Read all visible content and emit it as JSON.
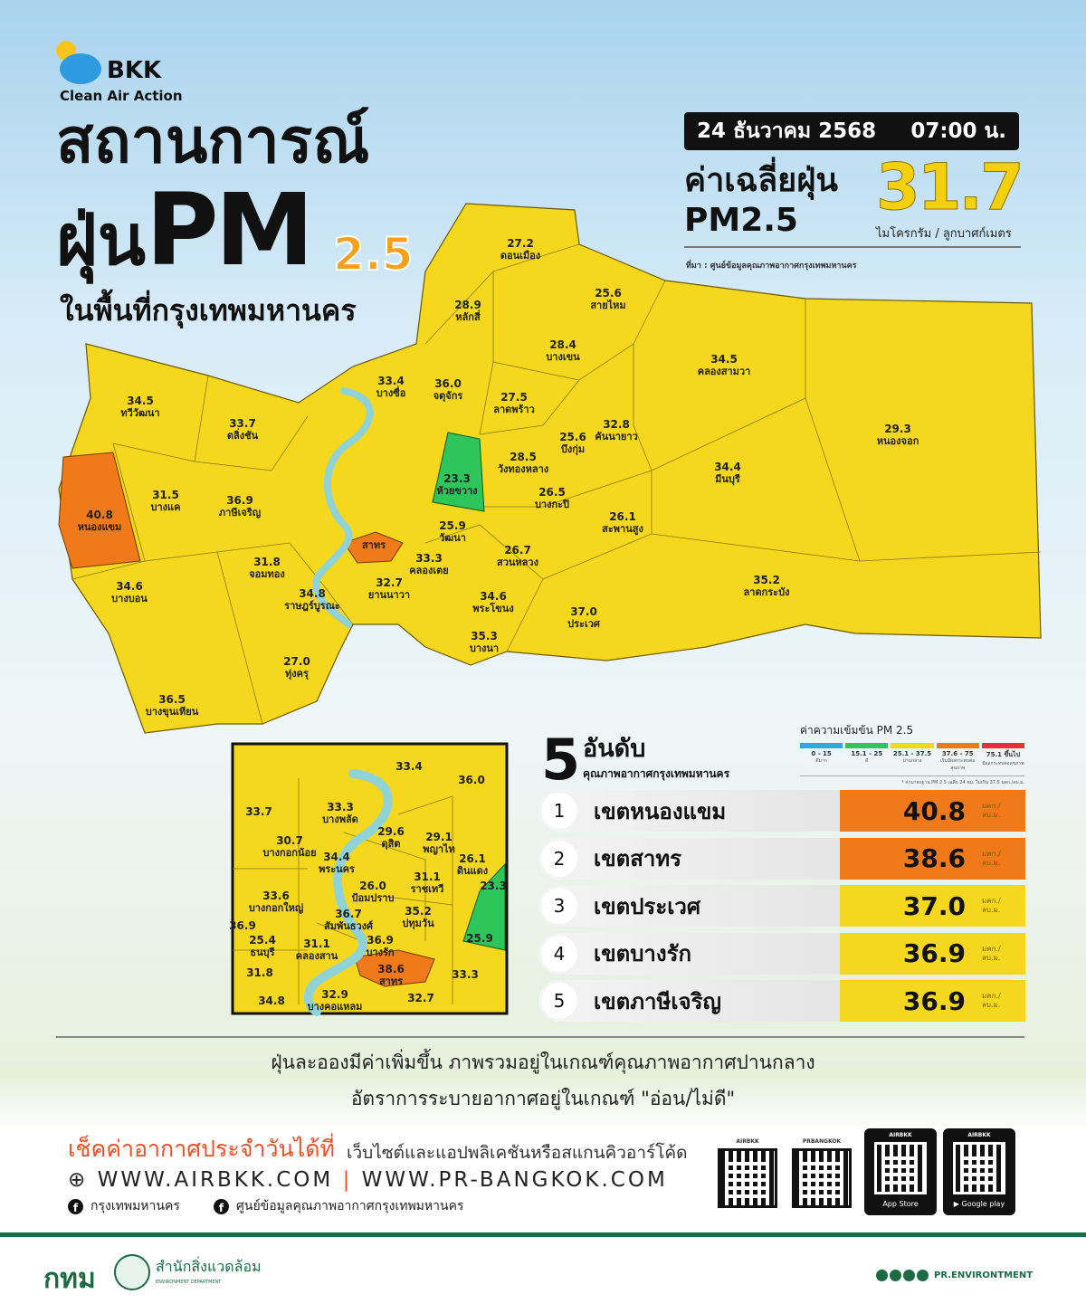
{
  "brand": {
    "logo": "BKK",
    "tagline": "Clean Air Action"
  },
  "title": {
    "line1": "สถานการณ์",
    "line2_prefix": "ฝุ่น",
    "line2_pm": "PM",
    "line2_sub": "2.5",
    "line3": "ในพื้นที่กรุงเทพมหานคร"
  },
  "report": {
    "date": "24 ธันวาคม 2568",
    "time": "07:00 น.",
    "avg_label_1": "ค่าเฉลี่ยฝุ่น",
    "avg_label_2": "PM2.5",
    "avg_value": "31.7",
    "avg_unit": "ไมโครกรัม / ลูกบาศก์เมตร",
    "source": "ที่มา : ศูนย์ข้อมูลคุณภาพอากาศกรุงเทพมหานคร"
  },
  "colors": {
    "good": "#2ea8e0",
    "fair": "#2ec55a",
    "moderate": "#f5d81e",
    "unhealthy_sensitive": "#f07a1a",
    "unhealthy": "#e83030",
    "river": "#8fd3d8"
  },
  "districts": [
    {
      "name": "ดอนเมือง",
      "value": "27.2",
      "level": "moderate"
    },
    {
      "name": "หลักสี่",
      "value": "28.9",
      "level": "moderate"
    },
    {
      "name": "สายไหม",
      "value": "25.6",
      "level": "moderate"
    },
    {
      "name": "บางเขน",
      "value": "28.4",
      "level": "moderate"
    },
    {
      "name": "คลองสามวา",
      "value": "34.5",
      "level": "moderate"
    },
    {
      "name": "หนองจอก",
      "value": "29.3",
      "level": "moderate"
    },
    {
      "name": "บางซื่อ",
      "value": "33.4",
      "level": "moderate"
    },
    {
      "name": "จตุจักร",
      "value": "36.0",
      "level": "moderate"
    },
    {
      "name": "ลาดพร้าว",
      "value": "27.5",
      "level": "moderate"
    },
    {
      "name": "บึงกุ่ม",
      "value": "25.6",
      "level": "moderate"
    },
    {
      "name": "คันนายาว",
      "value": "32.8",
      "level": "moderate"
    },
    {
      "name": "มีนบุรี",
      "value": "34.4",
      "level": "moderate"
    },
    {
      "name": "ทวีวัฒนา",
      "value": "34.5",
      "level": "moderate"
    },
    {
      "name": "ตลิ่งชัน",
      "value": "33.7",
      "level": "moderate"
    },
    {
      "name": "บางแค",
      "value": "31.5",
      "level": "moderate"
    },
    {
      "name": "หนองแขม",
      "value": "40.8",
      "level": "unhealthy_sensitive"
    },
    {
      "name": "ภาษีเจริญ",
      "value": "36.9",
      "level": "moderate"
    },
    {
      "name": "ห้วยขวาง",
      "value": "23.3",
      "level": "fair"
    },
    {
      "name": "วังทองหลาง",
      "value": "28.5",
      "level": "moderate"
    },
    {
      "name": "บางกะปิ",
      "value": "26.5",
      "level": "moderate"
    },
    {
      "name": "สะพานสูง",
      "value": "26.1",
      "level": "moderate"
    },
    {
      "name": "ลาดกระบัง",
      "value": "35.2",
      "level": "moderate"
    },
    {
      "name": "วัฒนา",
      "value": "25.9",
      "level": "moderate"
    },
    {
      "name": "สวนหลวง",
      "value": "26.7",
      "level": "moderate"
    },
    {
      "name": "คลองเตย",
      "value": "33.3",
      "level": "moderate"
    },
    {
      "name": "สาทร",
      "value": "",
      "level": "unhealthy_sensitive"
    },
    {
      "name": "จอมทอง",
      "value": "31.8",
      "level": "moderate"
    },
    {
      "name": "บางบอน",
      "value": "34.6",
      "level": "moderate"
    },
    {
      "name": "ราษฎร์บูรณะ",
      "value": "34.8",
      "level": "moderate"
    },
    {
      "name": "ยานนาวา",
      "value": "32.7",
      "level": "moderate"
    },
    {
      "name": "พระโขนง",
      "value": "34.6",
      "level": "moderate"
    },
    {
      "name": "บางนา",
      "value": "35.3",
      "level": "moderate"
    },
    {
      "name": "ประเวศ",
      "value": "37.0",
      "level": "moderate"
    },
    {
      "name": "ทุ่งครุ",
      "value": "27.0",
      "level": "moderate"
    },
    {
      "name": "บางขุนเทียน",
      "value": "36.5",
      "level": "moderate"
    }
  ],
  "inset_districts": [
    {
      "name": "",
      "value": "33.4"
    },
    {
      "name": "",
      "value": "36.0"
    },
    {
      "name": "บางพลัด",
      "value": "33.3"
    },
    {
      "name": "",
      "value": "33.7"
    },
    {
      "name": "บางกอกน้อย",
      "value": "30.7"
    },
    {
      "name": "ดุสิต",
      "value": "29.6"
    },
    {
      "name": "พญาไท",
      "value": "29.1"
    },
    {
      "name": "ดินแดง",
      "value": "26.1"
    },
    {
      "name": "",
      "value": "23.3"
    },
    {
      "name": "พระนคร",
      "value": "34.4"
    },
    {
      "name": "ป้อมปราบ",
      "value": "26.0"
    },
    {
      "name": "ราชเทวี",
      "value": "31.1"
    },
    {
      "name": "บางกอกใหญ่",
      "value": "33.6"
    },
    {
      "name": "สัมพันธวงศ์",
      "value": "36.7"
    },
    {
      "name": "ปทุมวัน",
      "value": "35.2"
    },
    {
      "name": "",
      "value": "36.9"
    },
    {
      "name": "ธนบุรี",
      "value": "25.4"
    },
    {
      "name": "คลองสาน",
      "value": "31.1"
    },
    {
      "name": "บางรัก",
      "value": "36.9"
    },
    {
      "name": "",
      "value": "25.9"
    },
    {
      "name": "สาทร",
      "value": "38.6"
    },
    {
      "name": "",
      "value": "31.8"
    },
    {
      "name": "บางคอแหลม",
      "value": "32.9"
    },
    {
      "name": "",
      "value": "34.8"
    },
    {
      "name": "",
      "value": "32.7"
    },
    {
      "name": "",
      "value": "33.3"
    }
  ],
  "top5": {
    "number": "5",
    "title": "อันดับ",
    "subtitle": "คุณภาพอากาศกรุงเทพมหานคร",
    "unit": "มคก./ลบ.ม.",
    "rows": [
      {
        "rank": "1",
        "name": "เขตหนองแขม",
        "value": "40.8",
        "level": "unhealthy_sensitive"
      },
      {
        "rank": "2",
        "name": "เขตสาทร",
        "value": "38.6",
        "level": "unhealthy_sensitive"
      },
      {
        "rank": "3",
        "name": "เขตประเวศ",
        "value": "37.0",
        "level": "moderate"
      },
      {
        "rank": "4",
        "name": "เขตบางรัก",
        "value": "36.9",
        "level": "moderate"
      },
      {
        "rank": "5",
        "name": "เขตภาษีเจริญ",
        "value": "36.9",
        "level": "moderate"
      }
    ]
  },
  "legend": {
    "title": "ค่าความเข้มข้น  PM 2.5",
    "items": [
      {
        "range": "0 - 15",
        "desc": "ดีมาก",
        "color": "#2ea8e0"
      },
      {
        "range": "15.1 - 25",
        "desc": "ดี",
        "color": "#2ec55a"
      },
      {
        "range": "25.1 - 37.5",
        "desc": "ปานกลาง",
        "color": "#f5d81e"
      },
      {
        "range": "37.6 - 75",
        "desc": "เริ่มมีผลกระทบต่อสุขภาพ",
        "color": "#f07a1a"
      },
      {
        "range": "75.1 ขึ้นไป",
        "desc": "มีผลกระทบต่อสุขภาพ",
        "color": "#e83030"
      }
    ],
    "note": "* ค่ามาตรฐาน PM 2.5 เฉลี่ย 24 ชม. ไม่เกิน 37.5 มคก./ลบ.ม."
  },
  "summary": {
    "line1": "ฝุ่นละอองมีค่าเพิ่มขึ้น ภาพรวมอยู่ในเกณฑ์คุณภาพอากาศปานกลาง",
    "line2": "อัตราการระบายอากาศอยู่ในเกณฑ์ \"อ่อน/ไม่ดี\""
  },
  "footer": {
    "check": "เช็คค่าอากาศประจำวันได้ที่",
    "check_sub": "เว็บไซต์และแอปพลิเคชันหรือสแกนคิวอาร์โค้ด",
    "url1": "WWW.AIRBKK.COM",
    "url_sep": "|",
    "url2": "WWW.PR-BANGKOK.COM",
    "fb1": "กรุงเทพมหานคร",
    "fb2": "ศูนย์ข้อมูลคุณภาพอากาศกรุงเทพมหานคร",
    "qr1": "AIRBKK",
    "qr2": "PRBANGKOK",
    "app1_label": "AIRBKK",
    "app1_store": "App Store",
    "app2_label": "AIRBKK",
    "app2_store": "Google play",
    "org": "กทม",
    "dept": "สำนักสิ่งแวดล้อม",
    "dept_en": "ENVIRONMENT DEPARTMENT",
    "social": "PR.ENVIRONTMENT"
  }
}
